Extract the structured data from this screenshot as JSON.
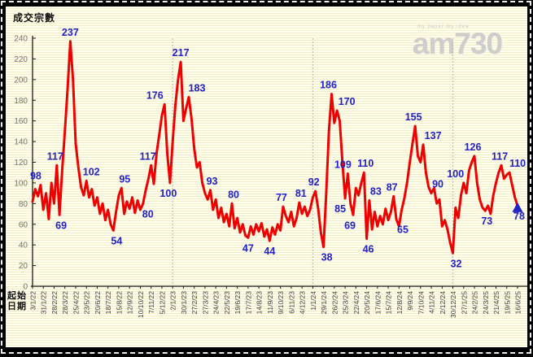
{
  "title": "成交宗數",
  "watermark": {
    "brand": "am730",
    "tagline": "my paper my idea"
  },
  "axis_note": {
    "line1": "起始",
    "line2": "日期"
  },
  "chart_data": {
    "type": "line",
    "title": "成交宗數",
    "xlabel": "起始日期",
    "ylabel": "成交宗數",
    "ylim": [
      0,
      240
    ],
    "yticks": [
      0,
      20,
      40,
      60,
      80,
      100,
      120,
      140,
      160,
      180,
      200,
      220,
      240
    ],
    "grid": "vertical-dashed-at-year-starts",
    "legend": "none",
    "line_color": "#ee0000",
    "label_color": "#2121c8",
    "weeks_per_tick": 4,
    "x_tick_labels": [
      "3/1/22",
      "31/1/22",
      "28/2/22",
      "28/3/22",
      "25/4/22",
      "23/5/22",
      "20/6/22",
      "18/7/22",
      "15/8/22",
      "12/9/22",
      "10/10/22",
      "7/11/22",
      "5/12/22",
      "2/1/23",
      "30/1/23",
      "27/2/23",
      "27/3/23",
      "24/4/23",
      "22/5/23",
      "19/6/23",
      "17/7/23",
      "14/8/23",
      "11/9/23",
      "9/10/23",
      "6/11/23",
      "4/12/23",
      "1/1/24",
      "29/1/24",
      "26/2/24",
      "25/3/24",
      "22/4/24",
      "20/5/24",
      "17/6/24",
      "15/7/24",
      "12/8/24",
      "9/9/24",
      "7/10/24",
      "4/11/24",
      "2/12/24",
      "30/12/24",
      "27/1/25",
      "24/2/25",
      "24/3/25",
      "21/4/25",
      "19/5/25",
      "16/6/25"
    ],
    "year_gridline_weeks": [
      52,
      104,
      156
    ],
    "values": [
      82,
      94,
      87,
      98,
      74,
      90,
      65,
      100,
      80,
      117,
      69,
      112,
      150,
      190,
      237,
      200,
      138,
      115,
      96,
      88,
      102,
      86,
      94,
      78,
      86,
      70,
      80,
      64,
      74,
      60,
      54,
      72,
      88,
      95,
      70,
      82,
      75,
      86,
      71,
      83,
      74,
      80,
      93,
      104,
      117,
      99,
      128,
      146,
      165,
      176,
      128,
      100,
      140,
      175,
      200,
      217,
      160,
      172,
      183,
      162,
      133,
      115,
      120,
      100,
      90,
      84,
      93,
      74,
      84,
      66,
      76,
      62,
      70,
      58,
      80,
      56,
      66,
      52,
      60,
      49,
      47,
      58,
      50,
      60,
      53,
      61,
      48,
      55,
      44,
      57,
      50,
      60,
      54,
      77,
      68,
      62,
      72,
      58,
      66,
      81,
      70,
      77,
      68,
      74,
      86,
      92,
      75,
      52,
      38,
      90,
      150,
      186,
      158,
      170,
      160,
      120,
      85,
      109,
      80,
      69,
      95,
      88,
      100,
      110,
      46,
      83,
      55,
      72,
      58,
      68,
      60,
      75,
      64,
      72,
      87,
      65,
      58,
      74,
      85,
      100,
      120,
      138,
      155,
      126,
      120,
      137,
      110,
      96,
      90,
      95,
      80,
      84,
      58,
      64,
      55,
      42,
      32,
      76,
      66,
      88,
      100,
      90,
      112,
      120,
      126,
      100,
      84,
      76,
      73,
      78,
      70,
      88,
      100,
      110,
      117,
      104,
      108,
      110,
      98,
      86,
      78
    ],
    "point_labels": [
      {
        "i": 3,
        "t": "98",
        "p": "a",
        "dx": -6
      },
      {
        "i": 9,
        "t": "117",
        "p": "a",
        "dx": -2
      },
      {
        "i": 10,
        "t": "69",
        "p": "b",
        "dx": 2
      },
      {
        "i": 14,
        "t": "237",
        "p": "a",
        "dx": 0
      },
      {
        "i": 20,
        "t": "102",
        "p": "a",
        "dx": 6
      },
      {
        "i": 30,
        "t": "54",
        "p": "b",
        "dx": 4
      },
      {
        "i": 33,
        "t": "95",
        "p": "a",
        "dx": 4
      },
      {
        "i": 41,
        "t": "80",
        "p": "b",
        "dx": 6
      },
      {
        "i": 44,
        "t": "117",
        "p": "a",
        "dx": -4
      },
      {
        "i": 49,
        "t": "176",
        "p": "a",
        "dx": -12
      },
      {
        "i": 51,
        "t": "100",
        "p": "b",
        "dx": -2
      },
      {
        "i": 55,
        "t": "217",
        "p": "a",
        "dx": 0
      },
      {
        "i": 58,
        "t": "183",
        "p": "a",
        "dx": 10
      },
      {
        "i": 66,
        "t": "93",
        "p": "a",
        "dx": 2
      },
      {
        "i": 74,
        "t": "80",
        "p": "a",
        "dx": 2
      },
      {
        "i": 80,
        "t": "47",
        "p": "b",
        "dx": 0
      },
      {
        "i": 88,
        "t": "44",
        "p": "b",
        "dx": 0
      },
      {
        "i": 93,
        "t": "77",
        "p": "a",
        "dx": -2
      },
      {
        "i": 99,
        "t": "81",
        "p": "a",
        "dx": 2
      },
      {
        "i": 105,
        "t": "92",
        "p": "a",
        "dx": -2
      },
      {
        "i": 108,
        "t": "38",
        "p": "b",
        "dx": 4
      },
      {
        "i": 111,
        "t": "186",
        "p": "a",
        "dx": -4
      },
      {
        "i": 113,
        "t": "170",
        "p": "a",
        "dx": 12
      },
      {
        "i": 116,
        "t": "85",
        "p": "b",
        "dx": -6
      },
      {
        "i": 117,
        "t": "109",
        "p": "a",
        "dx": -6
      },
      {
        "i": 119,
        "t": "69",
        "p": "b",
        "dx": -4
      },
      {
        "i": 123,
        "t": "110",
        "p": "a",
        "dx": 2
      },
      {
        "i": 124,
        "t": "46",
        "p": "b",
        "dx": 2
      },
      {
        "i": 125,
        "t": "83",
        "p": "a",
        "dx": 8
      },
      {
        "i": 134,
        "t": "87",
        "p": "a",
        "dx": -2
      },
      {
        "i": 135,
        "t": "65",
        "p": "b",
        "dx": 8
      },
      {
        "i": 142,
        "t": "155",
        "p": "a",
        "dx": -2
      },
      {
        "i": 145,
        "t": "137",
        "p": "a",
        "dx": 12
      },
      {
        "i": 148,
        "t": "90",
        "p": "a",
        "dx": 8
      },
      {
        "i": 156,
        "t": "32",
        "p": "b",
        "dx": 4
      },
      {
        "i": 160,
        "t": "100",
        "p": "a",
        "dx": -10
      },
      {
        "i": 164,
        "t": "126",
        "p": "a",
        "dx": -2
      },
      {
        "i": 168,
        "t": "73",
        "p": "b",
        "dx": 2
      },
      {
        "i": 174,
        "t": "117",
        "p": "a",
        "dx": -2
      },
      {
        "i": 177,
        "t": "110",
        "p": "a",
        "dx": 10
      },
      {
        "i": 180,
        "t": "78",
        "p": "b",
        "dx": 2
      }
    ],
    "end_marker": {
      "shape": "triangle-up",
      "color": "#2121c8",
      "index": 180,
      "value": 78
    }
  }
}
